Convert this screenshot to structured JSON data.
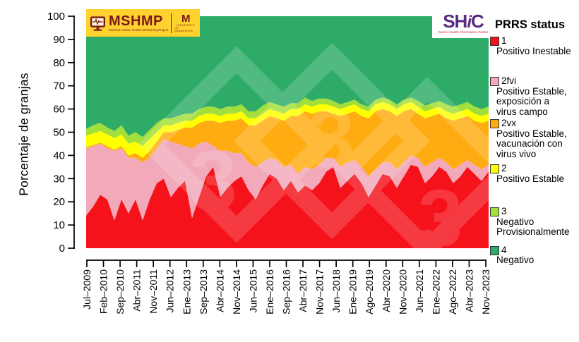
{
  "header": {
    "mshmp": {
      "acronym": "MSHMP",
      "subtitle": "Morrison Swine Health Monitoring Project",
      "bg_color": "#FFD230",
      "text_color": "#7A1B16"
    },
    "umn": {
      "monogram": "M",
      "line1": "University",
      "line2": "of Minnesota"
    },
    "shic": {
      "acronym_part1": "SH",
      "acronym_part2": "i",
      "acronym_part3": "C",
      "subtitle": "Swine Health Information Center",
      "purple": "#5A2B83",
      "red": "#C42B31"
    }
  },
  "legend": {
    "title": "PRRS status",
    "items": [
      {
        "code": "1",
        "lines": [
          "Positivo Inestable"
        ],
        "color": "#F5121B"
      },
      {
        "code": "2fvi",
        "lines": [
          "Positivo Estable,",
          "exposición a",
          "virus campo"
        ],
        "color": "#F2A9B9"
      },
      {
        "code": "2vx",
        "lines": [
          "Positivo Estable,",
          "vacunación con",
          "virus vivo"
        ],
        "color": "#FFAC12"
      },
      {
        "code": "2",
        "lines": [
          "Positivo Estable"
        ],
        "color": "#FFFF00"
      },
      {
        "code": "3",
        "lines": [
          "Negativo",
          "Provisionalmente"
        ],
        "color": "#A3DF3A"
      },
      {
        "code": "4",
        "lines": [
          "Negativo"
        ],
        "color": "#2EAC67"
      }
    ]
  },
  "watermark": {
    "glyph": "3"
  },
  "chart_data": {
    "type": "area",
    "stacked": true,
    "title": "",
    "ylabel": "Porcentaje de granjas",
    "ylim": [
      0,
      100
    ],
    "yticks": [
      0,
      10,
      20,
      30,
      40,
      50,
      60,
      70,
      80,
      90,
      100
    ],
    "x_start": "Jul-2009",
    "x_end": "Nov-2023",
    "point_interval_months": 3,
    "grid": false,
    "legend_position": "right",
    "xticklabels": [
      "Jul–2009",
      "Feb–2010",
      "Sep–2010",
      "Abr–2011",
      "Nov–2011",
      "Jun–2012",
      "Ene–2013",
      "Sep–2013",
      "Abr–2014",
      "Nov–2014",
      "Jun–2015",
      "Ene–2016",
      "Sep–2016",
      "Abr–2017",
      "Nov–2017",
      "Jun–2018",
      "Ene–2019",
      "Ago–2019",
      "Abr–2020",
      "Nov–2020",
      "Jun–2021",
      "Ene–2022",
      "Ago–2022",
      "Abr–2023",
      "Nov–2023"
    ],
    "series": [
      {
        "id": "1",
        "name": "1 Positivo Inestable",
        "color": "#F5121B",
        "values": [
          14,
          18,
          23,
          21,
          12,
          21,
          15,
          21,
          12,
          21,
          28,
          30,
          22,
          26,
          29,
          13,
          22,
          31,
          35,
          22,
          26,
          29,
          31,
          25,
          21,
          27,
          32,
          30,
          25,
          29,
          24,
          27,
          25,
          28,
          33,
          35,
          26,
          29,
          32,
          28,
          22,
          27,
          32,
          31,
          26,
          31,
          36,
          35,
          28,
          31,
          35,
          33,
          28,
          31,
          35,
          32,
          29,
          33
        ]
      },
      {
        "id": "2fvi",
        "name": "2fvi Positivo Estable, exposición a virus campo",
        "color": "#F2A9B9",
        "values": [
          29,
          26,
          22,
          22,
          30,
          22,
          24,
          18,
          25,
          18,
          15,
          17,
          24,
          19,
          15,
          30,
          23,
          15,
          9,
          20,
          16,
          12,
          10,
          12,
          14,
          10,
          7,
          8,
          10,
          7,
          8,
          8,
          9,
          8,
          6,
          4,
          9,
          8,
          6,
          7,
          9,
          7,
          5,
          6,
          8,
          6,
          4,
          4,
          7,
          6,
          4,
          4,
          6,
          5,
          3,
          4,
          5,
          3
        ]
      },
      {
        "id": "2vx",
        "name": "2vx Positivo Estable, vacunación con virus vivo",
        "color": "#FFAC12",
        "values": [
          0.5,
          0.5,
          0.5,
          1,
          0.5,
          1,
          1,
          2,
          2,
          3,
          3,
          3,
          4,
          6,
          8,
          9,
          9,
          9,
          11,
          12,
          13,
          14,
          15,
          16,
          18,
          18,
          18,
          18,
          20,
          21,
          25,
          24,
          24,
          23,
          20,
          19,
          22,
          21,
          21,
          22,
          25,
          25,
          23,
          22,
          23,
          22,
          20,
          19,
          21,
          20,
          19,
          19,
          21,
          20,
          19,
          19,
          20,
          19
        ]
      },
      {
        "id": "2",
        "name": "2 Positivo Estable",
        "color": "#FFFF00",
        "values": [
          5,
          5,
          5,
          5,
          5,
          5,
          5,
          5,
          5,
          5,
          4,
          3,
          3,
          3,
          3,
          3,
          3,
          3,
          3,
          3,
          3,
          3,
          3,
          3,
          3,
          3,
          3,
          3,
          3,
          3,
          3,
          3,
          3,
          3,
          3,
          3,
          3,
          3,
          3,
          3,
          3,
          3,
          3,
          3,
          3,
          3,
          3,
          3,
          3,
          3,
          3,
          3,
          3,
          3,
          3,
          3,
          3,
          3
        ]
      },
      {
        "id": "3",
        "name": "3 Negativo Provisionalmente",
        "color": "#A3DF3A",
        "values": [
          3,
          3.5,
          3.5,
          3,
          3,
          4,
          3.5,
          4,
          4,
          4,
          4,
          3,
          3,
          3,
          3,
          3,
          3,
          3,
          3,
          3,
          3,
          3,
          3,
          3,
          3,
          3.5,
          3,
          3,
          3,
          2.5,
          2.5,
          3,
          2.5,
          2.5,
          2.5,
          2.5,
          2,
          2,
          2,
          2,
          2,
          2,
          2,
          2,
          2,
          2,
          2,
          2.5,
          2.5,
          2.5,
          2.5,
          3,
          3,
          3,
          3,
          3,
          3,
          3
        ]
      },
      {
        "id": "4",
        "name": "4 Negativo",
        "color": "#2EAC67",
        "remainder": true,
        "values": []
      }
    ]
  }
}
